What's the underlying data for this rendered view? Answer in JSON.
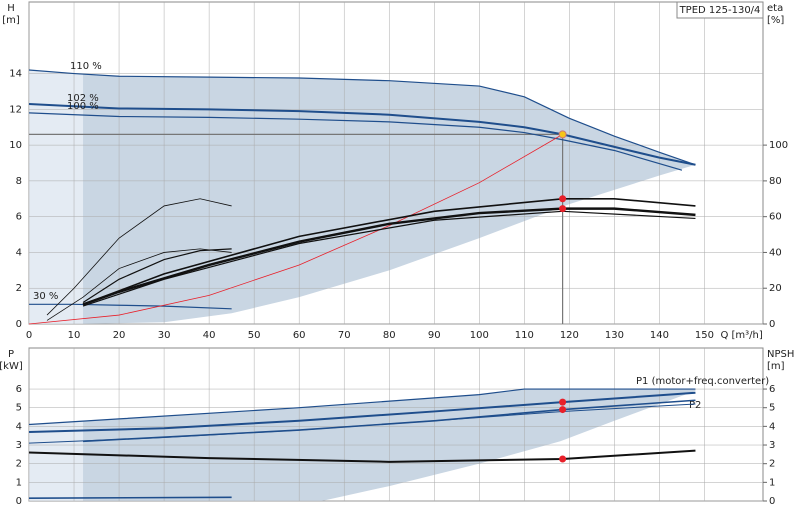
{
  "chart_data": [
    {
      "type": "line",
      "model": "TPED 125-130/4",
      "ylabel": "H",
      "yunit": "[m]",
      "y2label": "eta",
      "y2unit": "[%]",
      "xlabel": "Q [m³/h]",
      "xlim": [
        0,
        163
      ],
      "ylim": [
        0,
        18
      ],
      "y2lim": [
        0,
        180
      ],
      "xticks": [
        0,
        10,
        20,
        30,
        40,
        50,
        60,
        70,
        80,
        90,
        100,
        110,
        120,
        130,
        140,
        150
      ],
      "yticks": [
        0,
        2,
        4,
        6,
        8,
        10,
        12,
        14
      ],
      "y2ticks": [
        0,
        20,
        40,
        60,
        80,
        100
      ],
      "xtick_labels": true,
      "grid": true,
      "duty_point": {
        "x": 118.5,
        "y": 10.6
      },
      "series": [
        {
          "kind": "area",
          "color": "#e4ebf3",
          "x": [
            0,
            12,
            12,
            0
          ],
          "values": [
            14.2,
            14,
            0,
            0
          ]
        },
        {
          "kind": "area",
          "color": "#c9d6e3",
          "x": [
            12,
            20,
            40,
            60,
            80,
            100,
            110,
            120,
            130,
            140,
            148,
            140,
            120,
            100,
            80,
            60,
            45,
            30,
            12
          ],
          "values": [
            14,
            13.85,
            13.8,
            13.75,
            13.6,
            13.3,
            12.7,
            11.5,
            10.5,
            9.6,
            8.9,
            8.3,
            6.7,
            4.8,
            3,
            1.5,
            0.6,
            0.1,
            0
          ]
        },
        {
          "name": "110 %",
          "color": "#1f4e8c",
          "width": 1.2,
          "x": [
            0,
            10,
            20,
            40,
            60,
            80,
            100,
            110,
            120,
            130,
            140,
            148
          ],
          "values": [
            14.2,
            14,
            13.85,
            13.8,
            13.75,
            13.6,
            13.3,
            12.7,
            11.5,
            10.5,
            9.6,
            8.9
          ]
        },
        {
          "name": "102 %",
          "color": "#1f4e8c",
          "width": 2,
          "x": [
            0,
            20,
            40,
            60,
            80,
            100,
            110,
            118.5,
            130,
            140,
            148
          ],
          "values": [
            12.3,
            12.05,
            12,
            11.9,
            11.7,
            11.3,
            11,
            10.6,
            9.9,
            9.3,
            8.9
          ]
        },
        {
          "name": "100 %",
          "color": "#1f4e8c",
          "width": 1.2,
          "x": [
            0,
            20,
            40,
            60,
            80,
            100,
            110,
            118.5,
            130,
            145
          ],
          "values": [
            11.8,
            11.6,
            11.55,
            11.45,
            11.3,
            11,
            10.7,
            10.3,
            9.7,
            8.6
          ]
        },
        {
          "name": "30 %",
          "color": "#1f4e8c",
          "width": 1.2,
          "x": [
            0,
            10,
            20,
            30,
            45
          ],
          "values": [
            1.1,
            1.1,
            1.05,
            1,
            0.85
          ]
        },
        {
          "color": "#e8202a",
          "width": 0.8,
          "x": [
            0,
            20,
            40,
            60,
            80,
            100,
            118.5
          ],
          "values": [
            0,
            0.5,
            1.6,
            3.3,
            5.5,
            7.9,
            10.6
          ]
        },
        {
          "axis": "y2",
          "color": "#111111",
          "width": 1.6,
          "x": [
            12,
            30,
            60,
            90,
            118.5,
            130,
            148
          ],
          "values": [
            11,
            28,
            49,
            63,
            70,
            70,
            66
          ]
        },
        {
          "axis": "y2",
          "color": "#111111",
          "width": 2.4,
          "x": [
            12,
            20,
            40,
            60,
            80,
            100,
            118.5,
            130,
            148
          ],
          "values": [
            11,
            18,
            33,
            46,
            56,
            62,
            64.5,
            64.5,
            61
          ]
        },
        {
          "axis": "y2",
          "color": "#111111",
          "width": 1.2,
          "x": [
            12,
            30,
            60,
            90,
            118.5,
            148
          ],
          "values": [
            10,
            25,
            45,
            58,
            63,
            59
          ]
        },
        {
          "axis": "y2",
          "color": "#111111",
          "width": 0.8,
          "x": [
            4,
            10,
            20,
            30,
            38,
            45
          ],
          "values": [
            5,
            20,
            48,
            66,
            70,
            66
          ]
        },
        {
          "axis": "y2",
          "color": "#111111",
          "width": 0.8,
          "x": [
            4,
            12,
            20,
            30,
            38,
            45
          ],
          "values": [
            2,
            15,
            31,
            40,
            42,
            40
          ]
        },
        {
          "axis": "y2",
          "color": "#111111",
          "width": 1.2,
          "x": [
            12,
            20,
            30,
            38,
            45
          ],
          "values": [
            12,
            25,
            36,
            41,
            42
          ]
        },
        {
          "marker": true,
          "color": "#f5c518",
          "x": [
            118.5
          ],
          "values": [
            10.6
          ]
        },
        {
          "marker": true,
          "axis": "y2",
          "color": "#e8202a",
          "x": [
            118.5,
            118.5
          ],
          "values": [
            70,
            64.5
          ]
        }
      ]
    },
    {
      "type": "line",
      "ylabel": "P",
      "yunit": "[kW]",
      "y2label": "NPSH",
      "y2unit": "[m]",
      "xlim": [
        0,
        163
      ],
      "ylim": [
        0,
        8.2
      ],
      "y2lim": [
        0,
        8.2
      ],
      "xticks": [
        0,
        10,
        20,
        30,
        40,
        50,
        60,
        70,
        80,
        90,
        100,
        110,
        120,
        130,
        140,
        150
      ],
      "yticks": [
        0,
        1,
        2,
        3,
        4,
        5,
        6
      ],
      "y2ticks": [
        0,
        1,
        2,
        3,
        4,
        5,
        6
      ],
      "xtick_labels": false,
      "grid": true,
      "series": [
        {
          "kind": "area",
          "color": "#e4ebf3",
          "x": [
            0,
            12,
            12,
            0
          ],
          "values": [
            4.1,
            4.3,
            0,
            0
          ]
        },
        {
          "kind": "area",
          "color": "#c9d6e3",
          "x": [
            12,
            20,
            60,
            100,
            110,
            148,
            148,
            130,
            118,
            100,
            80,
            65,
            12
          ],
          "values": [
            4.3,
            4.4,
            5,
            5.7,
            6,
            6,
            5.9,
            4.3,
            3.2,
            2,
            0.8,
            0,
            0
          ]
        },
        {
          "name": "P1 (motor+freq.converter)",
          "color": "#1f4e8c",
          "width": 1.2,
          "x": [
            0,
            20,
            60,
            100,
            110,
            148
          ],
          "values": [
            4.1,
            4.4,
            5,
            5.7,
            6,
            6
          ]
        },
        {
          "color": "#1f4e8c",
          "width": 2,
          "x": [
            0,
            30,
            60,
            90,
            118.5,
            148
          ],
          "values": [
            3.7,
            3.9,
            4.3,
            4.8,
            5.3,
            5.8
          ]
        },
        {
          "name": "P2",
          "color": "#1f4e8c",
          "width": 1.6,
          "x": [
            12,
            60,
            90,
            118.5,
            148
          ],
          "values": [
            3.2,
            3.8,
            4.3,
            4.9,
            5.4
          ]
        },
        {
          "color": "#1f4e8c",
          "width": 1,
          "x": [
            0,
            30,
            60,
            90,
            118.5,
            148
          ],
          "values": [
            3.1,
            3.4,
            3.8,
            4.3,
            4.8,
            5.2
          ]
        },
        {
          "axis": "y2",
          "color": "#111111",
          "width": 2,
          "x": [
            0,
            40,
            80,
            118.5,
            148
          ],
          "values": [
            2.6,
            2.3,
            2.1,
            2.25,
            2.7
          ]
        },
        {
          "color": "#1f4e8c",
          "width": 1.6,
          "x": [
            0,
            45
          ],
          "values": [
            0.15,
            0.2
          ]
        },
        {
          "marker": true,
          "color": "#e8202a",
          "x": [
            118.5,
            118.5
          ],
          "values": [
            5.3,
            4.9
          ]
        },
        {
          "marker": true,
          "axis": "y2",
          "color": "#e8202a",
          "x": [
            118.5
          ],
          "values": [
            2.25
          ]
        }
      ]
    }
  ]
}
